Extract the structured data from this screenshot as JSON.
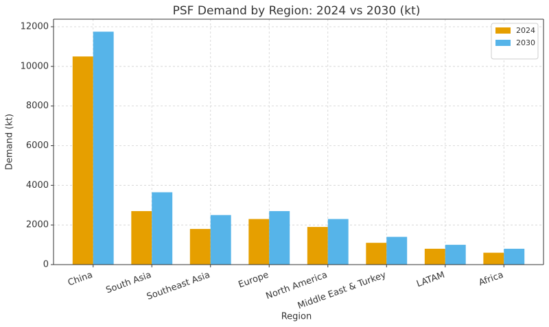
{
  "chart_data": {
    "type": "bar",
    "title": "PSF Demand by Region: 2024 vs 2030 (kt)",
    "x_label": "Region",
    "y_label": "Demand (kt)",
    "categories": [
      "China",
      "South Asia",
      "Southeast Asia",
      "Europe",
      "North America",
      "Middle East & Turkey",
      "LATAM",
      "Africa"
    ],
    "series": [
      {
        "name": "2024",
        "color": "#e69f00",
        "values": [
          10500,
          2700,
          1800,
          2300,
          1900,
          1100,
          800,
          600
        ]
      },
      {
        "name": "2030",
        "color": "#56b4e9",
        "values": [
          11750,
          3650,
          2500,
          2700,
          2300,
          1400,
          1000,
          800
        ]
      }
    ],
    "ylim": [
      0,
      12380
    ],
    "yticks": [
      0,
      2000,
      4000,
      6000,
      8000,
      10000,
      12000
    ],
    "grid": true,
    "legend": "upper right"
  }
}
